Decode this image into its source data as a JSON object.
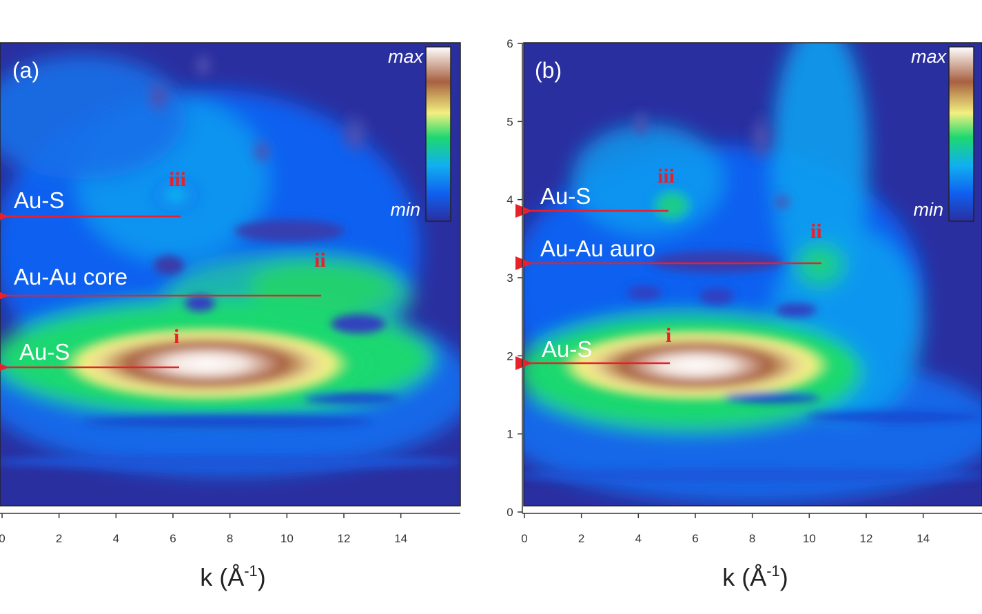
{
  "chart_data": [
    {
      "type": "heatmap",
      "panel_label": "(a)",
      "xlabel": "k (Å",
      "xlabel_sup": "-1",
      "xlabel_close": ")",
      "xlim": [
        0,
        15
      ],
      "ylim": [
        0,
        6
      ],
      "x_ticks": [
        "0",
        "2",
        "4",
        "6",
        "8",
        "10",
        "12",
        "14"
      ],
      "y_ticks": [],
      "colorbar": {
        "max_label": "max",
        "min_label": "min",
        "colors": [
          "#2a2fa0",
          "#1060f0",
          "#10b0f0",
          "#1cd870",
          "#f2f080",
          "#a86040",
          "#ffffff"
        ]
      },
      "annotations": [
        {
          "text": "Au-S",
          "peak": "iii",
          "k": 5.9,
          "r": 3.9
        },
        {
          "text": "Au-Au core",
          "peak": "ii",
          "k": 10.5,
          "r": 2.9
        },
        {
          "text": "Au-S",
          "peak": "i",
          "k": 5.9,
          "r": 1.85
        }
      ],
      "peaks": [
        {
          "k": 7.0,
          "r": 1.85,
          "intensity": 1.0
        },
        {
          "k": 10.2,
          "r": 2.75,
          "intensity": 0.35
        },
        {
          "k": 5.8,
          "r": 4.0,
          "intensity": 0.2
        }
      ]
    },
    {
      "type": "heatmap",
      "panel_label": "(b)",
      "xlabel": "k (Å",
      "xlabel_sup": "-1",
      "xlabel_close": ")",
      "xlim": [
        0,
        15
      ],
      "ylim": [
        0,
        6
      ],
      "x_ticks": [
        "0",
        "2",
        "4",
        "6",
        "8",
        "10",
        "12",
        "14"
      ],
      "y_ticks": [
        "0",
        "1",
        "2",
        "3",
        "4",
        "5",
        "6"
      ],
      "colorbar": {
        "max_label": "max",
        "min_label": "min",
        "colors": [
          "#2a2fa0",
          "#1060f0",
          "#10b0f0",
          "#1cd870",
          "#f2f080",
          "#a86040",
          "#ffffff"
        ]
      },
      "annotations": [
        {
          "text": "Au-S",
          "peak": "iii",
          "k": 4.7,
          "r": 3.85
        },
        {
          "text": "Au-Au auro",
          "peak": "ii",
          "k": 9.7,
          "r": 3.2
        },
        {
          "text": "Au-S",
          "peak": "i",
          "k": 4.7,
          "r": 1.9
        }
      ],
      "peaks": [
        {
          "k": 5.5,
          "r": 1.9,
          "intensity": 1.0
        },
        {
          "k": 9.7,
          "r": 3.2,
          "intensity": 0.3
        },
        {
          "k": 4.9,
          "r": 3.9,
          "intensity": 0.25
        }
      ]
    }
  ]
}
